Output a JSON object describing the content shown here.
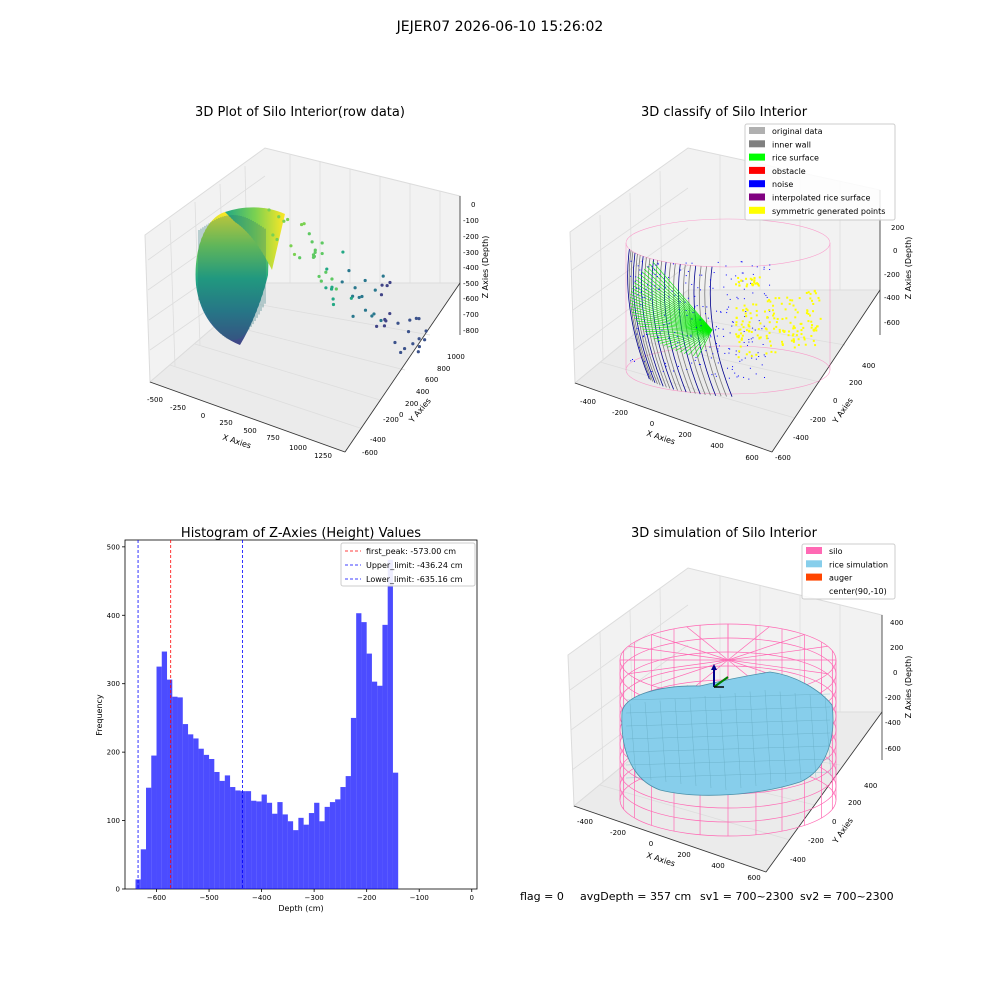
{
  "suptitle": "JEJER07 2026-06-10 15:26:02",
  "panels": {
    "raw": {
      "title": "3D Plot of Silo Interior(row data)",
      "xlabel": "X Axies",
      "ylabel": "Y Axies",
      "zlabel": "Z Axies (Depth)",
      "xticks": [
        "-500",
        "-250",
        "0",
        "250",
        "500",
        "750",
        "1000",
        "1250"
      ],
      "yticks": [
        "-600",
        "-400",
        "-200",
        "0",
        "200",
        "400",
        "600",
        "800",
        "1000"
      ],
      "zticks": [
        "0",
        "-100",
        "-200",
        "-300",
        "-400",
        "-500",
        "-600",
        "-700",
        "-800"
      ]
    },
    "classify": {
      "title": "3D classify of Silo Interior",
      "xlabel": "X Axies",
      "ylabel": "Y Axies",
      "zlabel": "Z Axies (Depth)",
      "xticks": [
        "-400",
        "-200",
        "0",
        "200",
        "400",
        "600"
      ],
      "yticks": [
        "-600",
        "-400",
        "-200",
        "0",
        "200",
        "400"
      ],
      "zticks": [
        "200",
        "0",
        "-200",
        "-400",
        "-600"
      ],
      "legend": [
        {
          "label": "original data",
          "color": "#b0b0b0"
        },
        {
          "label": "inner wall",
          "color": "#808080"
        },
        {
          "label": "rice surface",
          "color": "#00ff00"
        },
        {
          "label": "obstacle",
          "color": "#ff0000"
        },
        {
          "label": "noise",
          "color": "#0000ff"
        },
        {
          "label": "interpolated rice surface",
          "color": "#800080"
        },
        {
          "label": "symmetric generated points",
          "color": "#ffff00"
        }
      ]
    },
    "simulation": {
      "title": "3D simulation of Silo Interior",
      "xlabel": "X Axies",
      "ylabel": "Y Axies",
      "zlabel": "Z Axies (Depth)",
      "xticks": [
        "-400",
        "-200",
        "0",
        "200",
        "400",
        "600"
      ],
      "yticks": [
        "-400",
        "-200",
        "0",
        "200",
        "400"
      ],
      "zticks": [
        "400",
        "200",
        "0",
        "-200",
        "-400",
        "-600"
      ],
      "legend": [
        {
          "label": "silo",
          "color": "#ff69b4"
        },
        {
          "label": "rice simulation",
          "color": "#87ceeb"
        },
        {
          "label": "auger",
          "color": "#ff4500"
        },
        {
          "label": "center(90,-10)",
          "color": "none"
        }
      ]
    }
  },
  "footer": {
    "flag": "flag = 0",
    "avg": "avgDepth = 357 cm",
    "sv1": "sv1 = 700~2300",
    "sv2": "sv2 = 700~2300"
  },
  "chart_data": [
    {
      "type": "bar",
      "title": "Histogram of Z-Axies (Height) Values",
      "xlabel": "Depth (cm)",
      "ylabel": "Frequency",
      "xlim": [
        -660,
        10
      ],
      "ylim": [
        0,
        510
      ],
      "bin_start": -640,
      "bin_width": 10,
      "bar_color": "#0000ff",
      "values": [
        14,
        58,
        148,
        195,
        325,
        347,
        306,
        281,
        280,
        241,
        226,
        220,
        205,
        196,
        190,
        171,
        158,
        166,
        149,
        144,
        143,
        143,
        129,
        128,
        138,
        126,
        110,
        127,
        109,
        99,
        86,
        104,
        94,
        111,
        126,
        99,
        120,
        127,
        131,
        149,
        165,
        250,
        403,
        390,
        344,
        303,
        297,
        386,
        481,
        170
      ],
      "xticks": [
        -600,
        -500,
        -400,
        -300,
        -200,
        -100,
        0
      ],
      "yticks": [
        0,
        100,
        200,
        300,
        400,
        500
      ],
      "lines": [
        {
          "label": "first_peak: -573.00 cm",
          "x": -573.0,
          "color": "#ff0000"
        },
        {
          "label": "Upper_limit: -436.24 cm",
          "x": -436.24,
          "color": "#0000ff"
        },
        {
          "label": "Lower_limit: -635.16 cm",
          "x": -635.16,
          "color": "#0000ff"
        }
      ]
    }
  ]
}
